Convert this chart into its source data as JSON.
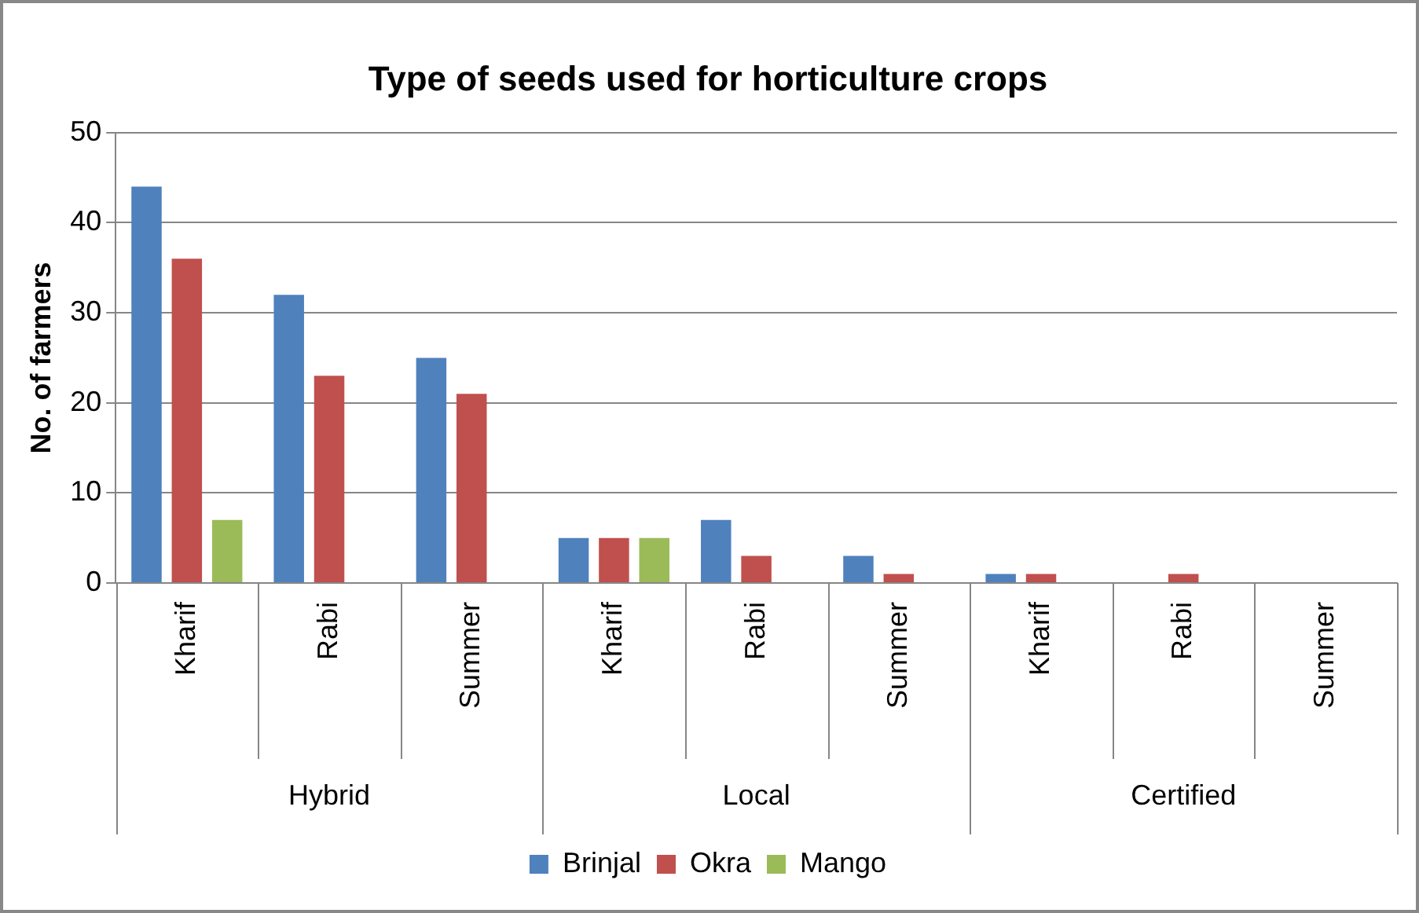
{
  "chart_data": {
    "type": "bar",
    "title": "Type of seeds used for horticulture crops",
    "ylabel": "No. of farmers",
    "categories": [
      "Kharif",
      "Rabi",
      "Summer",
      "Kharif",
      "Rabi",
      "Summer",
      "Kharif",
      "Rabi",
      "Summer"
    ],
    "annotations": [
      "Hybrid",
      "Local",
      "Certified"
    ],
    "series": [
      {
        "name": "Brinjal",
        "color": "#4f81bd",
        "values": [
          44,
          32,
          25,
          5,
          7,
          3,
          1,
          0,
          0
        ]
      },
      {
        "name": "Okra",
        "color": "#c0504d",
        "values": [
          36,
          23,
          21,
          5,
          3,
          1,
          1,
          1,
          0
        ]
      },
      {
        "name": "Mango",
        "color": "#9bbb59",
        "values": [
          7,
          0,
          0,
          5,
          0,
          0,
          0,
          0,
          0
        ]
      }
    ],
    "ylim": [
      0,
      50
    ],
    "yticks": [
      0,
      10,
      20,
      30,
      40,
      50
    ],
    "grid": "y",
    "legend": "bottom"
  }
}
